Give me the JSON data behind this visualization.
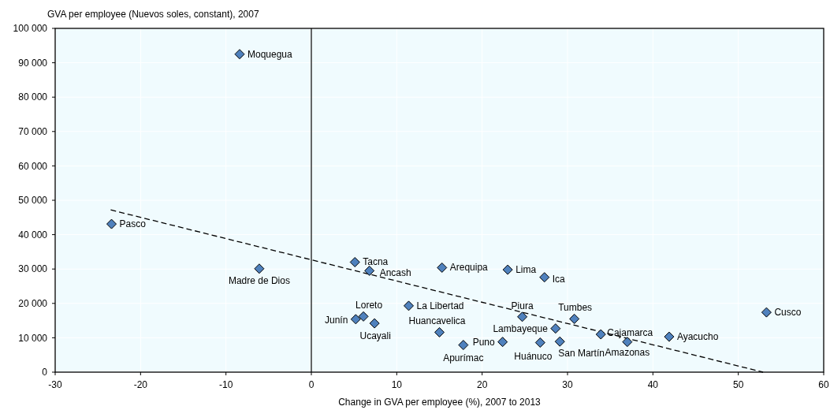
{
  "chart_data": {
    "type": "scatter",
    "ylabel": "GVA per employee (Nuevos soles, constant), 2007",
    "xlabel": "Change in GVA per employee (%), 2007 to 2013",
    "xlim": [
      -30,
      60
    ],
    "xticks": [
      -30,
      -20,
      -10,
      0,
      10,
      20,
      30,
      40,
      50,
      60
    ],
    "ylim": [
      0,
      100000
    ],
    "yticks": [
      {
        "value": 0,
        "label": "0"
      },
      {
        "value": 10000,
        "label": "10 000"
      },
      {
        "value": 20000,
        "label": "20 000"
      },
      {
        "value": 30000,
        "label": "30 000"
      },
      {
        "value": 40000,
        "label": "40 000"
      },
      {
        "value": 50000,
        "label": "50 000"
      },
      {
        "value": 60000,
        "label": "60 000"
      },
      {
        "value": 70000,
        "label": "70 000"
      },
      {
        "value": 80000,
        "label": "80 000"
      },
      {
        "value": 90000,
        "label": "90 000"
      },
      {
        "value": 100000,
        "label": "100 000"
      }
    ],
    "grid": true,
    "series": [
      {
        "type": "line",
        "color": "#000000",
        "marker": "none",
        "line_style": "dashed",
        "x": [
          -23.5,
          52.9
        ],
        "values": [
          47200,
          0
        ]
      },
      {
        "color": "#4f81bd",
        "marker": "diamond",
        "x": [
          -8.4,
          -23.4,
          -6.1,
          5.1,
          6.8,
          15.3,
          23.0,
          27.3,
          6.1,
          5.2,
          7.4,
          11.4,
          15.0,
          17.8,
          22.4,
          26.8,
          29.1,
          24.7,
          28.6,
          30.8,
          33.9,
          37.0,
          41.9,
          53.3
        ],
        "values": [
          92500,
          43100,
          30100,
          32000,
          29500,
          30400,
          29800,
          27600,
          16200,
          15400,
          14200,
          19300,
          11600,
          7900,
          8800,
          8600,
          8900,
          16100,
          12700,
          15500,
          11000,
          8800,
          10300,
          17400
        ]
      }
    ],
    "ref_lines": [
      {
        "axis": "x",
        "value": 0,
        "color": "#000000"
      }
    ],
    "annotations": [
      {
        "text": "Moquegua",
        "x": -8.4,
        "y": 92500
      },
      {
        "text": "Pasco",
        "x": -23.4,
        "y": 43100
      },
      {
        "text": "Madre de Dios",
        "x": -6.1,
        "y": 30100
      },
      {
        "text": "Tacna",
        "x": 5.1,
        "y": 32000
      },
      {
        "text": "Ancash",
        "x": 6.8,
        "y": 29500
      },
      {
        "text": "Arequipa",
        "x": 15.3,
        "y": 30400
      },
      {
        "text": "Lima",
        "x": 23.0,
        "y": 29800
      },
      {
        "text": "Ica",
        "x": 27.3,
        "y": 27600
      },
      {
        "text": "Loreto",
        "x": 6.1,
        "y": 16200
      },
      {
        "text": "Junín",
        "x": 5.2,
        "y": 15400
      },
      {
        "text": "Ucayali",
        "x": 7.4,
        "y": 14200
      },
      {
        "text": "La Libertad",
        "x": 11.4,
        "y": 19300
      },
      {
        "text": "Huancavelica",
        "x": 15.0,
        "y": 11600
      },
      {
        "text": "Apurímac",
        "x": 17.8,
        "y": 7900
      },
      {
        "text": "Puno",
        "x": 22.4,
        "y": 8800
      },
      {
        "text": "Huánuco",
        "x": 26.8,
        "y": 8600
      },
      {
        "text": "San Martín",
        "x": 29.1,
        "y": 8900
      },
      {
        "text": "Piura",
        "x": 24.7,
        "y": 16100
      },
      {
        "text": "Lambayeque",
        "x": 28.6,
        "y": 12700
      },
      {
        "text": "Tumbes",
        "x": 30.8,
        "y": 15500
      },
      {
        "text": "Cajamarca",
        "x": 33.9,
        "y": 11000
      },
      {
        "text": "Amazonas",
        "x": 37.0,
        "y": 8800
      },
      {
        "text": "Ayacucho",
        "x": 41.9,
        "y": 10300
      },
      {
        "text": "Cusco",
        "x": 53.3,
        "y": 17400
      }
    ]
  }
}
